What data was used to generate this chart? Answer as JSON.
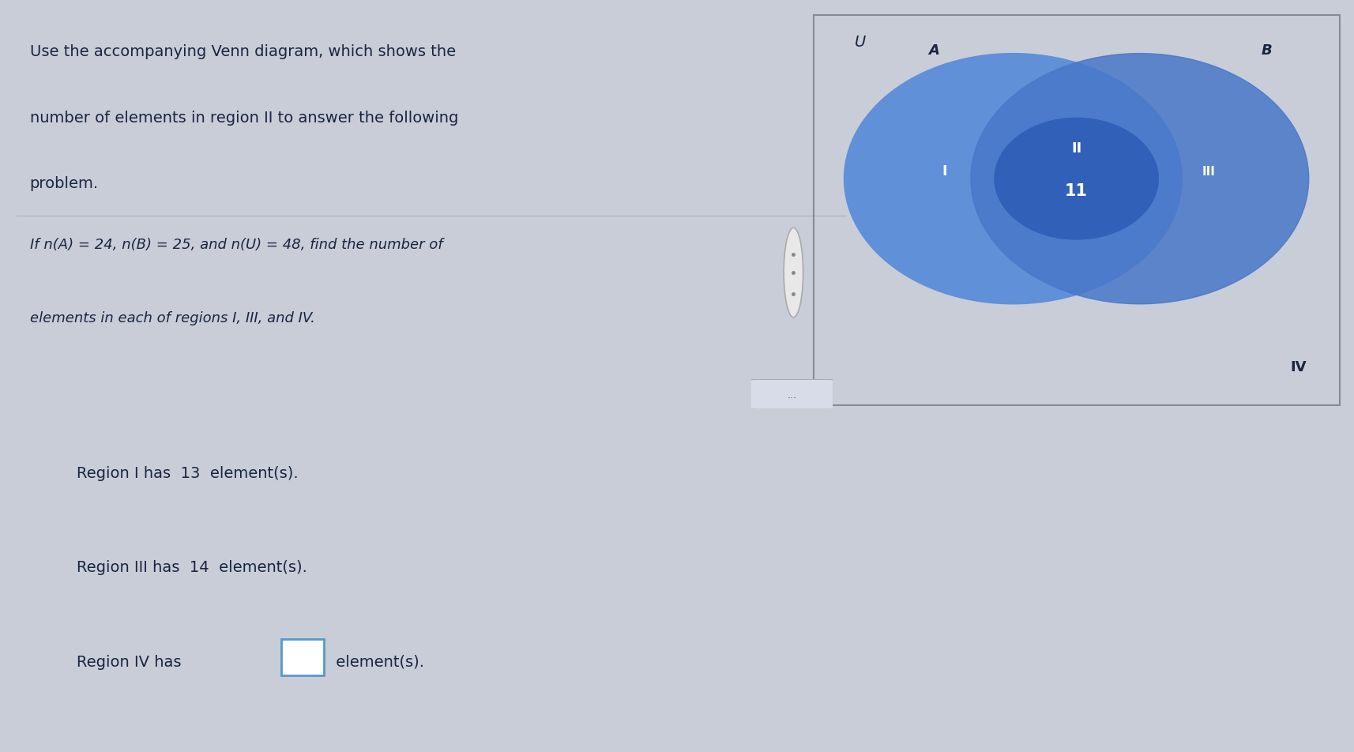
{
  "bg_top": "#c8cdd8",
  "bg_bottom": "#d0d5e0",
  "left_bar_color": "#5570a0",
  "divider_line_color": "#b0b8c8",
  "title_text_line1": "Use the accompanying Venn diagram, which shows the",
  "title_text_line2": "number of elements in region II to answer the following",
  "title_text_line3": "problem.",
  "problem_text_line1": "If n(A) = 24, n(B) = 25, and n(U) = 48, find the number of",
  "problem_text_line2": "elements in each of regions I, III, and IV.",
  "region1_text": "Region I has  13  element(s).",
  "region3_text": "Region III has  14  element(s).",
  "region4_pre": "Region IV has ",
  "region4_post": " element(s).",
  "venn_box_bg": "#bcc5d5",
  "venn_box_edge": "#888899",
  "circle_A_color": "#6090d8",
  "circle_B_color": "#4878c8",
  "overlap_color": "#3060b8",
  "U_label": "U",
  "A_label": "A",
  "B_label": "B",
  "region_I_label": "I",
  "region_II_label": "II",
  "region_III_label": "III",
  "region_IV_label": "IV",
  "overlap_value": "11",
  "text_color": "#1a2540",
  "venn_label_color": "#ffffff",
  "answer_color": "#1a2540",
  "input_box_edge": "#5599cc",
  "scroll_oval_color": "#e8e8e8",
  "scroll_dot_color": "#888888",
  "top_blue_bar": "#4466aa",
  "font_size_title": 14,
  "font_size_problem": 13,
  "font_size_answer": 14,
  "font_size_venn": 12
}
